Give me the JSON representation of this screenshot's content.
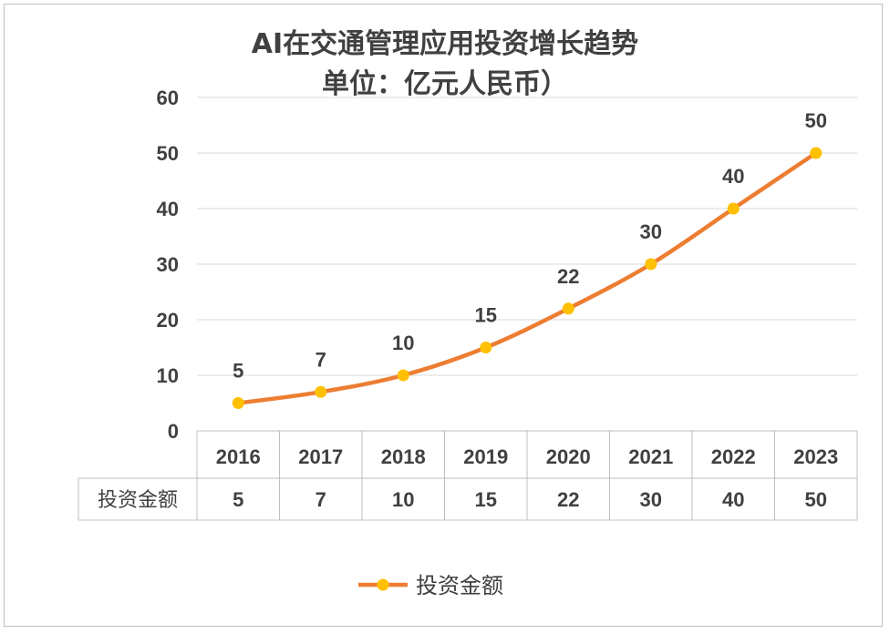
{
  "chart_data": {
    "type": "line",
    "title_line1": "AI在交通管理应用投资增长趋势",
    "title_line2": "单位：亿元人民币）",
    "categories": [
      "2016",
      "2017",
      "2018",
      "2019",
      "2020",
      "2021",
      "2022",
      "2023"
    ],
    "series": [
      {
        "name": "投资金额",
        "values": [
          5,
          7,
          10,
          15,
          22,
          30,
          40,
          50
        ],
        "color": "#ED7D31",
        "marker_color": "#FFC000"
      }
    ],
    "y_ticks": [
      "0",
      "10",
      "20",
      "30",
      "40",
      "50",
      "60"
    ],
    "ylim": [
      0,
      60
    ],
    "grid": true,
    "data_table": true,
    "legend_position": "bottom"
  }
}
